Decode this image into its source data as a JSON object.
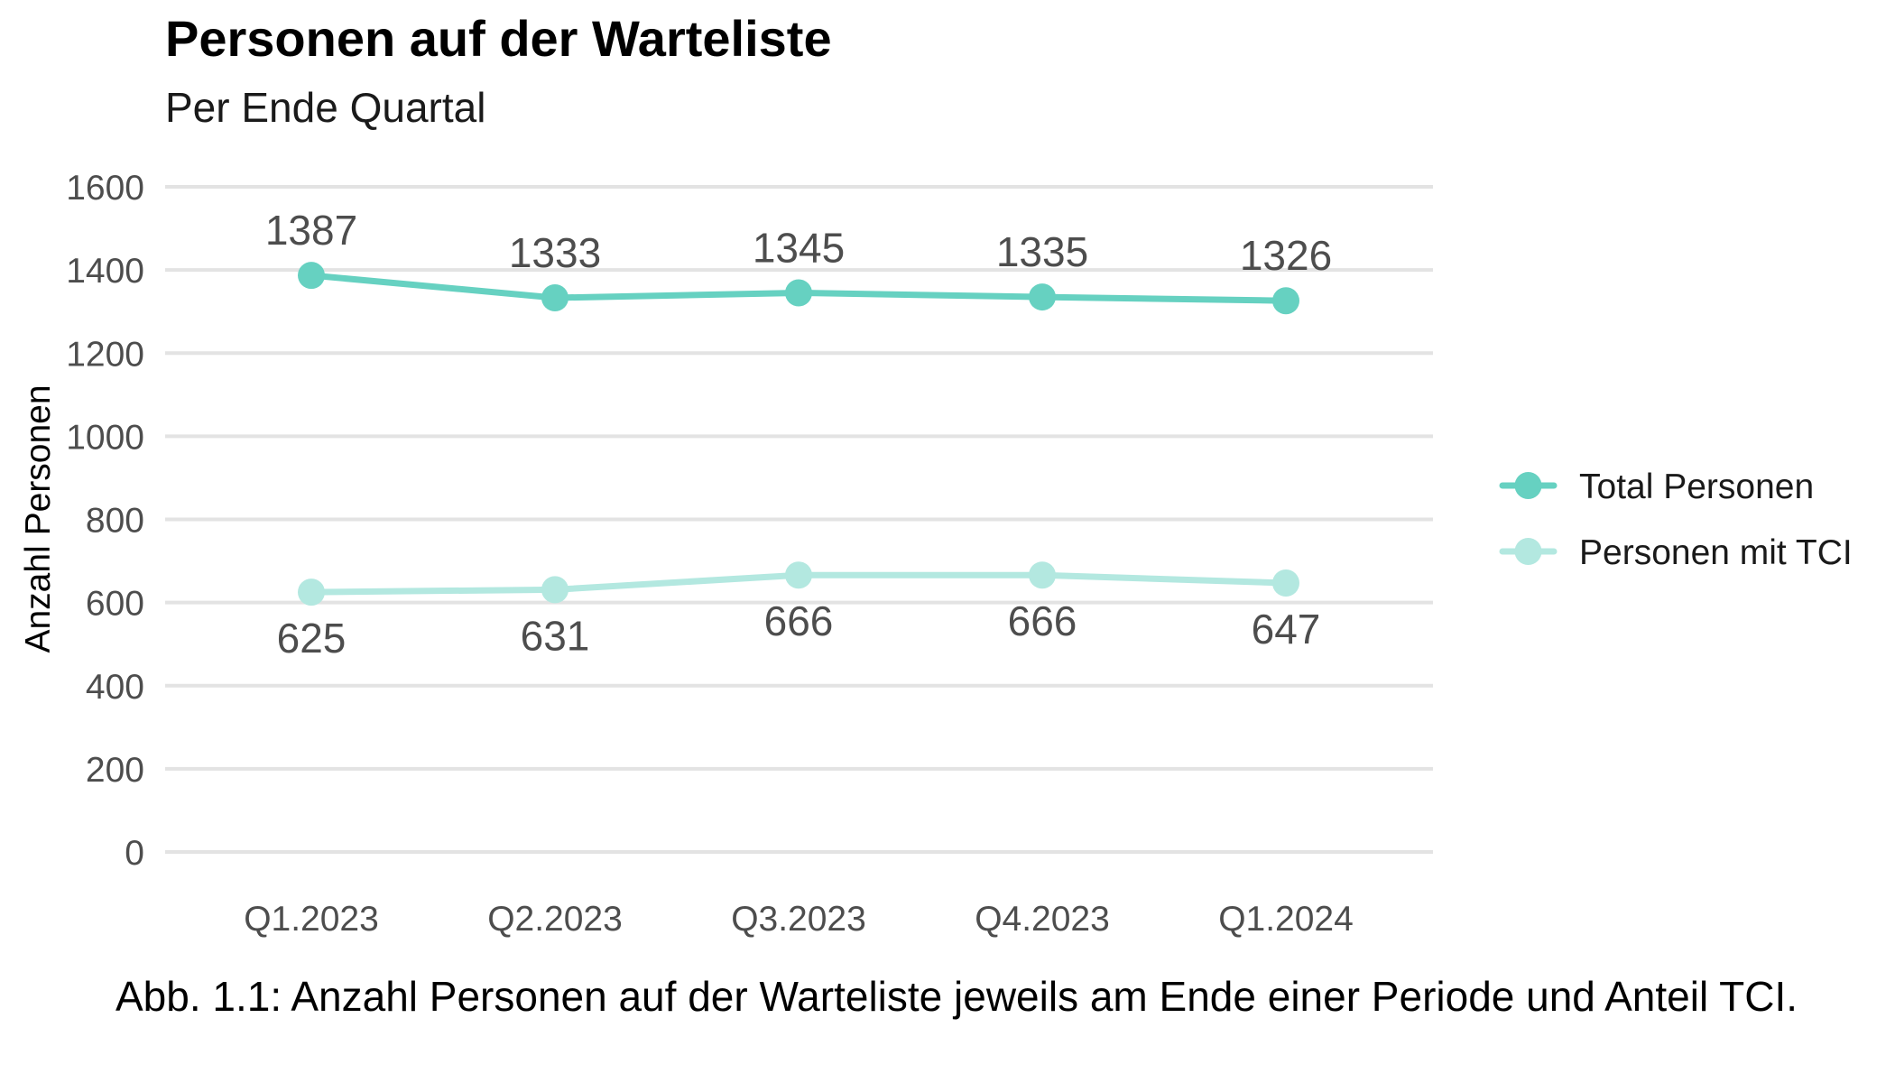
{
  "chart_data": {
    "type": "line",
    "title": "Personen auf der Warteliste",
    "subtitle": "Per Ende Quartal",
    "xlabel": "",
    "ylabel": "Anzahl Personen",
    "categories": [
      "Q1.2023",
      "Q2.2023",
      "Q3.2023",
      "Q4.2023",
      "Q1.2024"
    ],
    "ylim": [
      0,
      1600
    ],
    "yticks": [
      0,
      200,
      400,
      600,
      800,
      1000,
      1200,
      1400,
      1600
    ],
    "grid": true,
    "legend_position": "right",
    "series": [
      {
        "name": "Total Personen",
        "values": [
          1387,
          1333,
          1345,
          1335,
          1326
        ],
        "color": "#66d1c1",
        "label_position": "above"
      },
      {
        "name": "Personen mit TCI",
        "values": [
          625,
          631,
          666,
          666,
          647
        ],
        "color": "#b3e8e0",
        "label_position": "below"
      }
    ],
    "caption": "Abb. 1.1: Anzahl Personen auf der Warteliste jeweils am Ende einer Periode und Anteil TCI."
  }
}
